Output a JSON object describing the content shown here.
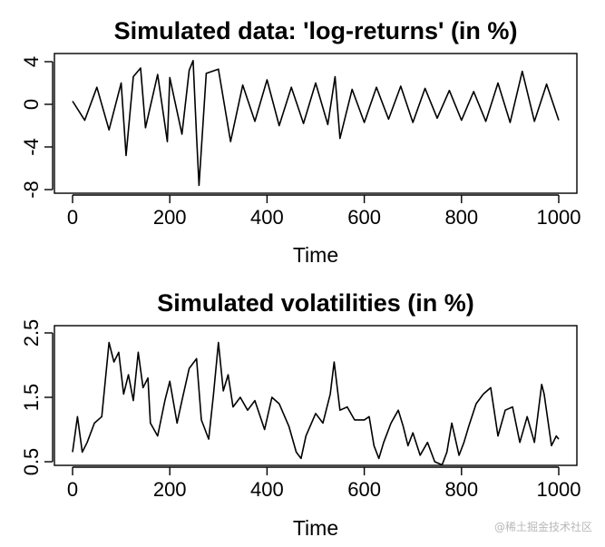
{
  "watermark": "@稀土掘金技术社区",
  "chart_data": [
    {
      "type": "line",
      "title": "Simulated data: 'log-returns' (in %)",
      "xlabel": "Time",
      "ylabel": "",
      "xlim": [
        0,
        1000
      ],
      "ylim": [
        -8,
        4.5
      ],
      "x_ticks": [
        0,
        200,
        400,
        600,
        800,
        1000
      ],
      "x_tick_labels": [
        "0",
        "200",
        "400",
        "600",
        "800",
        "1000"
      ],
      "y_ticks": [
        -8,
        -4,
        0,
        4
      ],
      "y_tick_labels": [
        "-8",
        "-4",
        "0",
        "4"
      ],
      "grid": false,
      "legend": "none",
      "line_color": "#000000",
      "x": [
        0,
        25,
        50,
        75,
        100,
        110,
        125,
        140,
        150,
        175,
        195,
        200,
        225,
        240,
        248,
        255,
        260,
        275,
        300,
        325,
        350,
        375,
        400,
        425,
        450,
        475,
        500,
        525,
        540,
        550,
        575,
        600,
        625,
        650,
        675,
        700,
        725,
        750,
        775,
        800,
        825,
        850,
        875,
        900,
        925,
        950,
        975,
        1000
      ],
      "values": [
        0.3,
        -1.5,
        1.6,
        -2.4,
        2.0,
        -4.8,
        2.6,
        3.4,
        -2.2,
        2.8,
        -3.5,
        2.5,
        -2.8,
        3.2,
        4.1,
        -3.0,
        -7.6,
        2.9,
        3.3,
        -3.5,
        1.8,
        -1.6,
        2.3,
        -2.0,
        1.6,
        -1.8,
        2.0,
        -1.9,
        2.6,
        -3.2,
        1.4,
        -1.7,
        1.6,
        -1.4,
        1.7,
        -1.7,
        1.5,
        -1.3,
        1.3,
        -1.5,
        1.2,
        -1.6,
        2.0,
        -1.7,
        3.1,
        -1.6,
        1.9,
        -1.5
      ]
    },
    {
      "type": "line",
      "title": "Simulated volatilities (in %)",
      "xlabel": "Time",
      "ylabel": "",
      "xlim": [
        0,
        1000
      ],
      "ylim": [
        0.4,
        2.45
      ],
      "x_ticks": [
        0,
        200,
        400,
        600,
        800,
        1000
      ],
      "x_tick_labels": [
        "0",
        "200",
        "400",
        "600",
        "800",
        "1000"
      ],
      "y_ticks": [
        0.5,
        1.5,
        2.5
      ],
      "y_tick_labels": [
        "0.5",
        "1.5",
        "2.5"
      ],
      "grid": false,
      "legend": "none",
      "line_color": "#000000",
      "x": [
        0,
        10,
        20,
        30,
        45,
        60,
        75,
        85,
        95,
        105,
        115,
        125,
        135,
        145,
        155,
        160,
        175,
        190,
        200,
        215,
        225,
        240,
        255,
        265,
        280,
        290,
        300,
        310,
        320,
        330,
        345,
        360,
        375,
        395,
        410,
        425,
        445,
        460,
        470,
        480,
        500,
        515,
        530,
        538,
        550,
        565,
        580,
        600,
        610,
        620,
        630,
        640,
        655,
        670,
        680,
        690,
        700,
        715,
        730,
        745,
        760,
        770,
        780,
        795,
        805,
        815,
        830,
        845,
        860,
        875,
        890,
        905,
        920,
        935,
        950,
        965,
        970,
        985,
        995,
        1000
      ],
      "values": [
        0.65,
        1.2,
        0.65,
        0.8,
        1.1,
        1.2,
        2.35,
        2.05,
        2.2,
        1.55,
        1.85,
        1.45,
        2.2,
        1.65,
        1.8,
        1.1,
        0.9,
        1.45,
        1.75,
        1.1,
        1.45,
        1.95,
        2.1,
        1.15,
        0.85,
        1.55,
        2.35,
        1.6,
        1.85,
        1.35,
        1.5,
        1.3,
        1.45,
        1.0,
        1.5,
        1.4,
        1.05,
        0.65,
        0.55,
        0.9,
        1.25,
        1.1,
        1.55,
        2.05,
        1.3,
        1.35,
        1.15,
        1.15,
        1.2,
        0.75,
        0.55,
        0.8,
        1.1,
        1.3,
        1.05,
        0.75,
        0.95,
        0.6,
        0.8,
        0.5,
        0.45,
        0.65,
        1.1,
        0.6,
        0.8,
        1.05,
        1.4,
        1.55,
        1.65,
        0.9,
        1.3,
        1.35,
        0.8,
        1.2,
        0.8,
        1.7,
        1.55,
        0.75,
        0.9,
        0.85
      ]
    }
  ]
}
